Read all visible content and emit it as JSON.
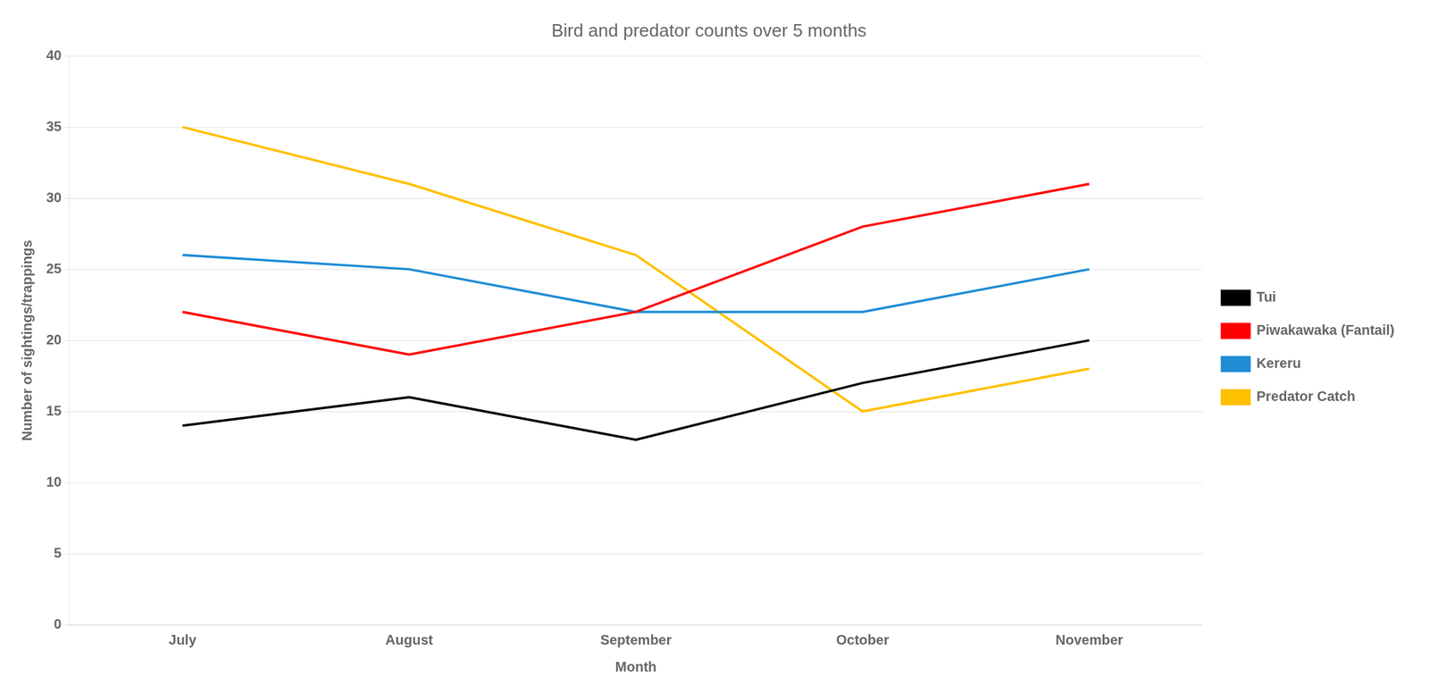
{
  "chart_data": {
    "type": "line",
    "title": "Bird and predator counts over 5 months",
    "xlabel": "Month",
    "ylabel": "Number of sightings/trappings",
    "categories": [
      "July",
      "August",
      "September",
      "October",
      "November"
    ],
    "series": [
      {
        "name": "Tui",
        "color": "#000000",
        "values": [
          14,
          16,
          13,
          17,
          20
        ]
      },
      {
        "name": "Piwakawaka (Fantail)",
        "color": "#ff0000",
        "values": [
          22,
          19,
          22,
          28,
          31
        ]
      },
      {
        "name": "Kereru",
        "color": "#1e8dd4",
        "values": [
          26,
          25,
          22,
          22,
          25
        ]
      },
      {
        "name": "Predator Catch",
        "color": "#ffc000",
        "values": [
          35,
          31,
          26,
          15,
          18
        ]
      }
    ],
    "ylim": [
      0,
      40
    ],
    "yticks": [
      0,
      5,
      10,
      15,
      20,
      25,
      30,
      35,
      40
    ],
    "grid": "y",
    "legend": "right"
  }
}
